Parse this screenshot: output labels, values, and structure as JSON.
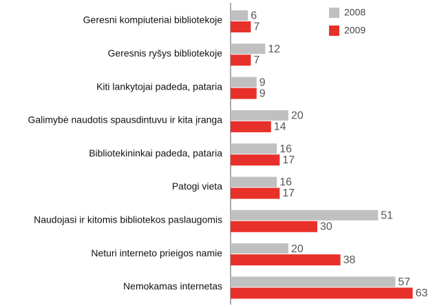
{
  "chart_data": {
    "type": "hbar",
    "categories": [
      "Geresni kompiuteriai bibliotekoje",
      "Geresnis ryšys bibliotekoje",
      "Kiti lankytojai padeda, pataria",
      "Galimybė naudotis spausdintuvu ir kita įranga",
      "Bibliotekininkai padeda, pataria",
      "Patogi vieta",
      "Naudojasi ir kitomis bibliotekos paslaugomis",
      "Neturi interneto prieigos namie",
      "Nemokamas internetas"
    ],
    "series": [
      {
        "name": "2008",
        "color": "#c0c0c0",
        "values": [
          6,
          12,
          9,
          20,
          16,
          16,
          51,
          20,
          57
        ]
      },
      {
        "name": "2009",
        "color": "#e8302a",
        "values": [
          7,
          7,
          9,
          14,
          17,
          17,
          30,
          38,
          63
        ]
      }
    ],
    "legend": "top-right"
  }
}
